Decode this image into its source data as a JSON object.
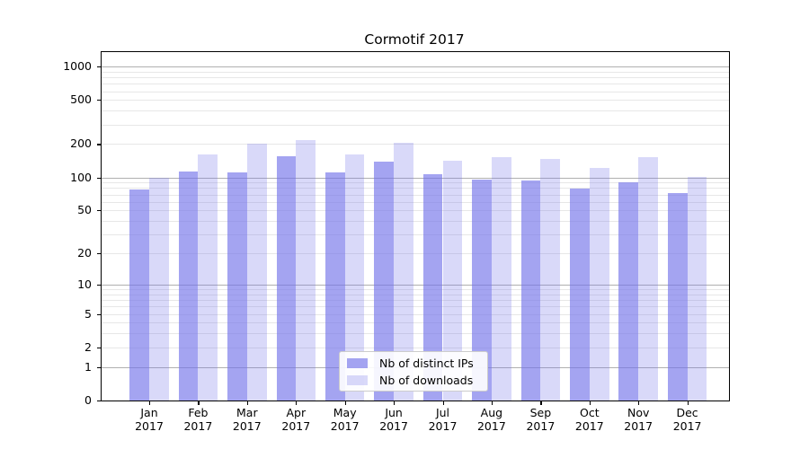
{
  "title": "Cormotif 2017",
  "colors": {
    "ips_bar": "rgba(115,115,234,0.65)",
    "downloads_bar": "rgba(115,115,234,0.27)",
    "major_grid": "#b0b0b0",
    "minor_grid": "#e7e7e7",
    "axis": "#000000",
    "legend_border": "#cccccc"
  },
  "legend": {
    "position": "lower center",
    "items": [
      {
        "label": "Nb of distinct IPs",
        "series": "ips"
      },
      {
        "label": "Nb of downloads",
        "series": "downloads"
      }
    ]
  },
  "chart_data": {
    "type": "bar",
    "title": "Cormotif 2017",
    "categories": [
      "Jan 2017",
      "Feb 2017",
      "Mar 2017",
      "Apr 2017",
      "May 2017",
      "Jun 2017",
      "Jul 2017",
      "Aug 2017",
      "Sep 2017",
      "Oct 2017",
      "Nov 2017",
      "Dec 2017"
    ],
    "series": [
      {
        "name": "Nb of distinct IPs",
        "color": "rgba(115,115,234,0.65)",
        "values": [
          78,
          113,
          110,
          154,
          112,
          140,
          107,
          96,
          94,
          79,
          91,
          72
        ]
      },
      {
        "name": "Nb of downloads",
        "color": "rgba(115,115,234,0.27)",
        "values": [
          100,
          162,
          200,
          218,
          160,
          206,
          142,
          153,
          147,
          121,
          153,
          101
        ]
      }
    ],
    "xlabel": "",
    "ylabel": "",
    "y_scale": "symlog (log1p)",
    "y_ticks": [
      0,
      1,
      2,
      5,
      10,
      20,
      50,
      100,
      200,
      500,
      1000
    ],
    "ylim": [
      0,
      1345
    ],
    "grid": "both (major decades darker, minors faint)"
  }
}
